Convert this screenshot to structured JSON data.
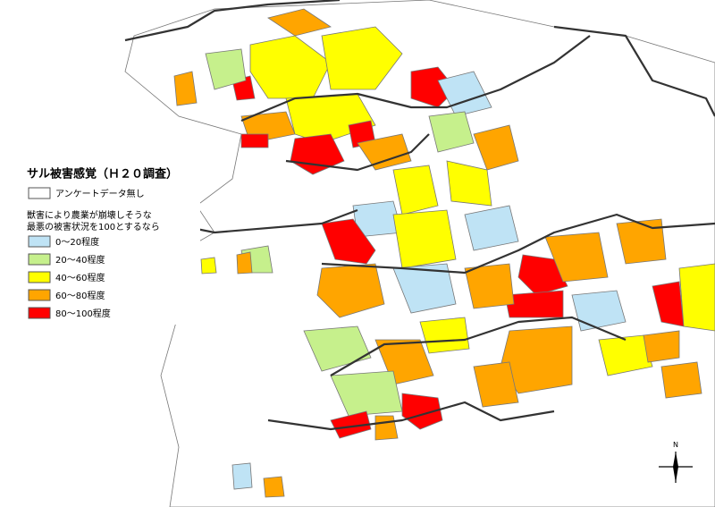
{
  "legend": {
    "title": "サル被害感覚（Ｈ２０調査）",
    "no_data": {
      "label": "アンケートデータ無し",
      "color": "#ffffff"
    },
    "note_line1": "獣害により農業が崩壊しそうな",
    "note_line2": "最悪の被害状況を100とするなら",
    "items": [
      {
        "label": "0～20程度",
        "color": "#bfe3f5"
      },
      {
        "label": "20～40程度",
        "color": "#c6f08c"
      },
      {
        "label": "40～60程度",
        "color": "#ffff00"
      },
      {
        "label": "60～80程度",
        "color": "#ffa500"
      },
      {
        "label": "80～100程度",
        "color": "#ff0000"
      }
    ]
  },
  "north_arrow": "N"
}
